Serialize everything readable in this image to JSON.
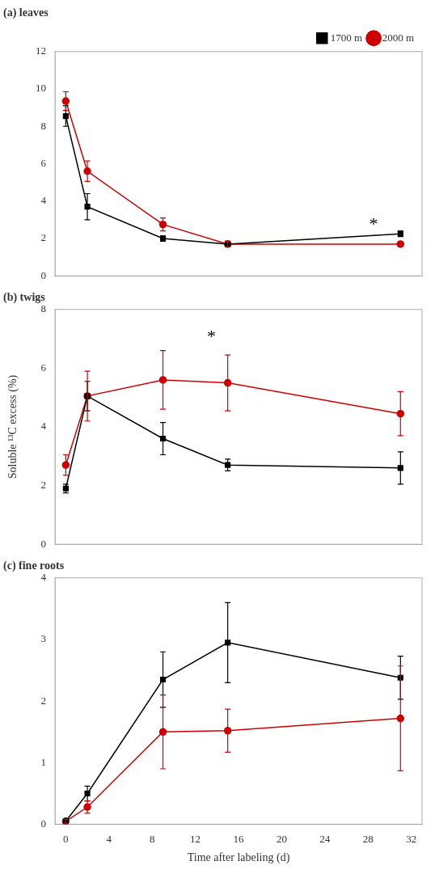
{
  "chart_data": [
    {
      "type": "line",
      "title": "(a) leaves",
      "x": [
        0,
        2,
        9,
        15,
        31
      ],
      "series": [
        {
          "name": "1700 m",
          "color": "#000000",
          "marker": "square",
          "values": [
            8.55,
            3.7,
            2.0,
            1.7,
            2.25
          ],
          "yerr": [
            0.55,
            0.7,
            0.15,
            0.15,
            0.15
          ]
        },
        {
          "name": "2000 m",
          "color": "#cc0000",
          "marker": "circle",
          "values": [
            9.35,
            5.6,
            2.75,
            1.7,
            1.7
          ],
          "yerr": [
            0.5,
            0.55,
            0.35,
            0.15,
            0.1
          ]
        }
      ],
      "xlim": [
        -1,
        33
      ],
      "xticks": [
        0,
        4,
        8,
        12,
        16,
        20,
        24,
        28,
        32
      ],
      "ylim": [
        0,
        12
      ],
      "yticks": [
        0,
        2,
        4,
        6,
        8,
        10,
        12
      ],
      "grid": false,
      "legend": "upper right",
      "tick_labels": "y",
      "annotations": [
        {
          "text": "*",
          "x": 28.5,
          "y": 2.9
        }
      ]
    },
    {
      "type": "line",
      "title": "(b) twigs",
      "ylabel": "Soluble ¹³C excess (%)",
      "x": [
        0,
        2,
        9,
        15,
        31
      ],
      "series": [
        {
          "name": "1700 m",
          "color": "#000000",
          "marker": "square",
          "values": [
            1.9,
            5.05,
            3.6,
            2.7,
            2.6
          ],
          "yerr": [
            0.15,
            0.5,
            0.55,
            0.2,
            0.55
          ]
        },
        {
          "name": "2000 m",
          "color": "#cc0000",
          "marker": "circle",
          "values": [
            2.7,
            5.05,
            5.6,
            5.5,
            4.45
          ],
          "yerr": [
            0.35,
            0.85,
            1.0,
            0.95,
            0.75
          ]
        }
      ],
      "xlim": [
        -1,
        33
      ],
      "xticks": [
        0,
        4,
        8,
        12,
        16,
        20,
        24,
        28,
        32
      ],
      "ylim": [
        0,
        8
      ],
      "yticks": [
        0,
        2,
        4,
        6,
        8
      ],
      "grid": false,
      "tick_labels": "y",
      "annotations": [
        {
          "text": "*",
          "x": 13.5,
          "y": 7.15
        }
      ]
    },
    {
      "type": "line",
      "title": "(c) fine roots",
      "xlabel": "Time after labeling (d)",
      "x": [
        0,
        2,
        9,
        15,
        31
      ],
      "series": [
        {
          "name": "1700 m",
          "color": "#000000",
          "marker": "square",
          "values": [
            0.05,
            0.5,
            2.35,
            2.95,
            2.38
          ],
          "yerr": [
            0.03,
            0.12,
            0.45,
            0.65,
            0.35
          ]
        },
        {
          "name": "2000 m",
          "color": "#cc0000",
          "marker": "circle",
          "values": [
            0.05,
            0.28,
            1.5,
            1.52,
            1.72
          ],
          "yerr": [
            0.03,
            0.1,
            0.6,
            0.35,
            0.85
          ]
        }
      ],
      "xlim": [
        -1,
        33
      ],
      "xticks": [
        0,
        4,
        8,
        12,
        16,
        20,
        24,
        28,
        32
      ],
      "ylim": [
        0,
        4
      ],
      "yticks": [
        0,
        1,
        2,
        3,
        4
      ],
      "grid": false
    }
  ]
}
